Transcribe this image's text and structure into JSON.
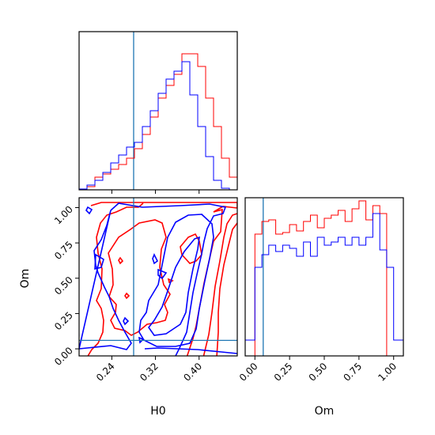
{
  "chart_data": {
    "type": "corner",
    "parameters": [
      "H0",
      "Om"
    ],
    "truths": {
      "H0": 0.28,
      "Om": 0.06
    },
    "series": [
      {
        "color": "#ff0000"
      },
      {
        "color": "#0000ff"
      }
    ],
    "truth_color": "#1f77b4",
    "panels": {
      "h0_hist": {
        "type": "histogram",
        "xlim": [
          0.18,
          0.47
        ],
        "x_ticks": [
          "0.24",
          "0.32",
          "0.40"
        ],
        "bins": [
          0.18,
          0.1945,
          0.209,
          0.2235,
          0.238,
          0.2525,
          0.267,
          0.2815,
          0.296,
          0.3105,
          0.325,
          0.3395,
          0.354,
          0.3685,
          0.383,
          0.3975,
          0.412,
          0.4265,
          0.441,
          0.4555,
          0.47
        ],
        "red": [
          0.005,
          0.02,
          0.08,
          0.1,
          0.13,
          0.16,
          0.2,
          0.26,
          0.35,
          0.46,
          0.58,
          0.66,
          0.73,
          0.86,
          0.86,
          0.78,
          0.58,
          0.4,
          0.2,
          0.08
        ],
        "blue": [
          0.005,
          0.03,
          0.06,
          0.11,
          0.17,
          0.22,
          0.27,
          0.3,
          0.4,
          0.5,
          0.61,
          0.7,
          0.75,
          0.81,
          0.6,
          0.4,
          0.21,
          0.06,
          0.01,
          0.0
        ]
      },
      "om_hist": {
        "type": "histogram",
        "xlim": [
          -0.07,
          1.07
        ],
        "x_ticks": [
          "0.00",
          "0.25",
          "0.50",
          "0.75",
          "1.00"
        ],
        "bins": [
          -0.07,
          0.0,
          0.05,
          0.1,
          0.15,
          0.2,
          0.25,
          0.3,
          0.35,
          0.4,
          0.45,
          0.5,
          0.55,
          0.6,
          0.65,
          0.7,
          0.75,
          0.8,
          0.85,
          0.9,
          0.95,
          1.0,
          1.07
        ],
        "red": [
          0.0,
          0.77,
          0.85,
          0.86,
          0.77,
          0.78,
          0.83,
          0.79,
          0.85,
          0.89,
          0.81,
          0.87,
          0.89,
          0.92,
          0.85,
          0.93,
          0.98,
          0.86,
          0.95,
          0.9,
          0.0,
          0.0
        ],
        "blue": [
          0.1,
          0.56,
          0.64,
          0.7,
          0.66,
          0.7,
          0.68,
          0.63,
          0.72,
          0.63,
          0.75,
          0.7,
          0.72,
          0.75,
          0.7,
          0.75,
          0.7,
          0.75,
          0.9,
          0.67,
          0.56,
          0.1
        ]
      },
      "joint": {
        "type": "contour",
        "xlabel": "H0",
        "ylabel": "Om",
        "xlim": [
          0.18,
          0.47
        ],
        "ylim": [
          -0.05,
          1.07
        ],
        "x_ticks": [
          "0.24",
          "0.32",
          "0.40"
        ],
        "y_ticks": [
          "0.00",
          "0.25",
          "0.50",
          "0.75",
          "1.00"
        ]
      }
    }
  }
}
